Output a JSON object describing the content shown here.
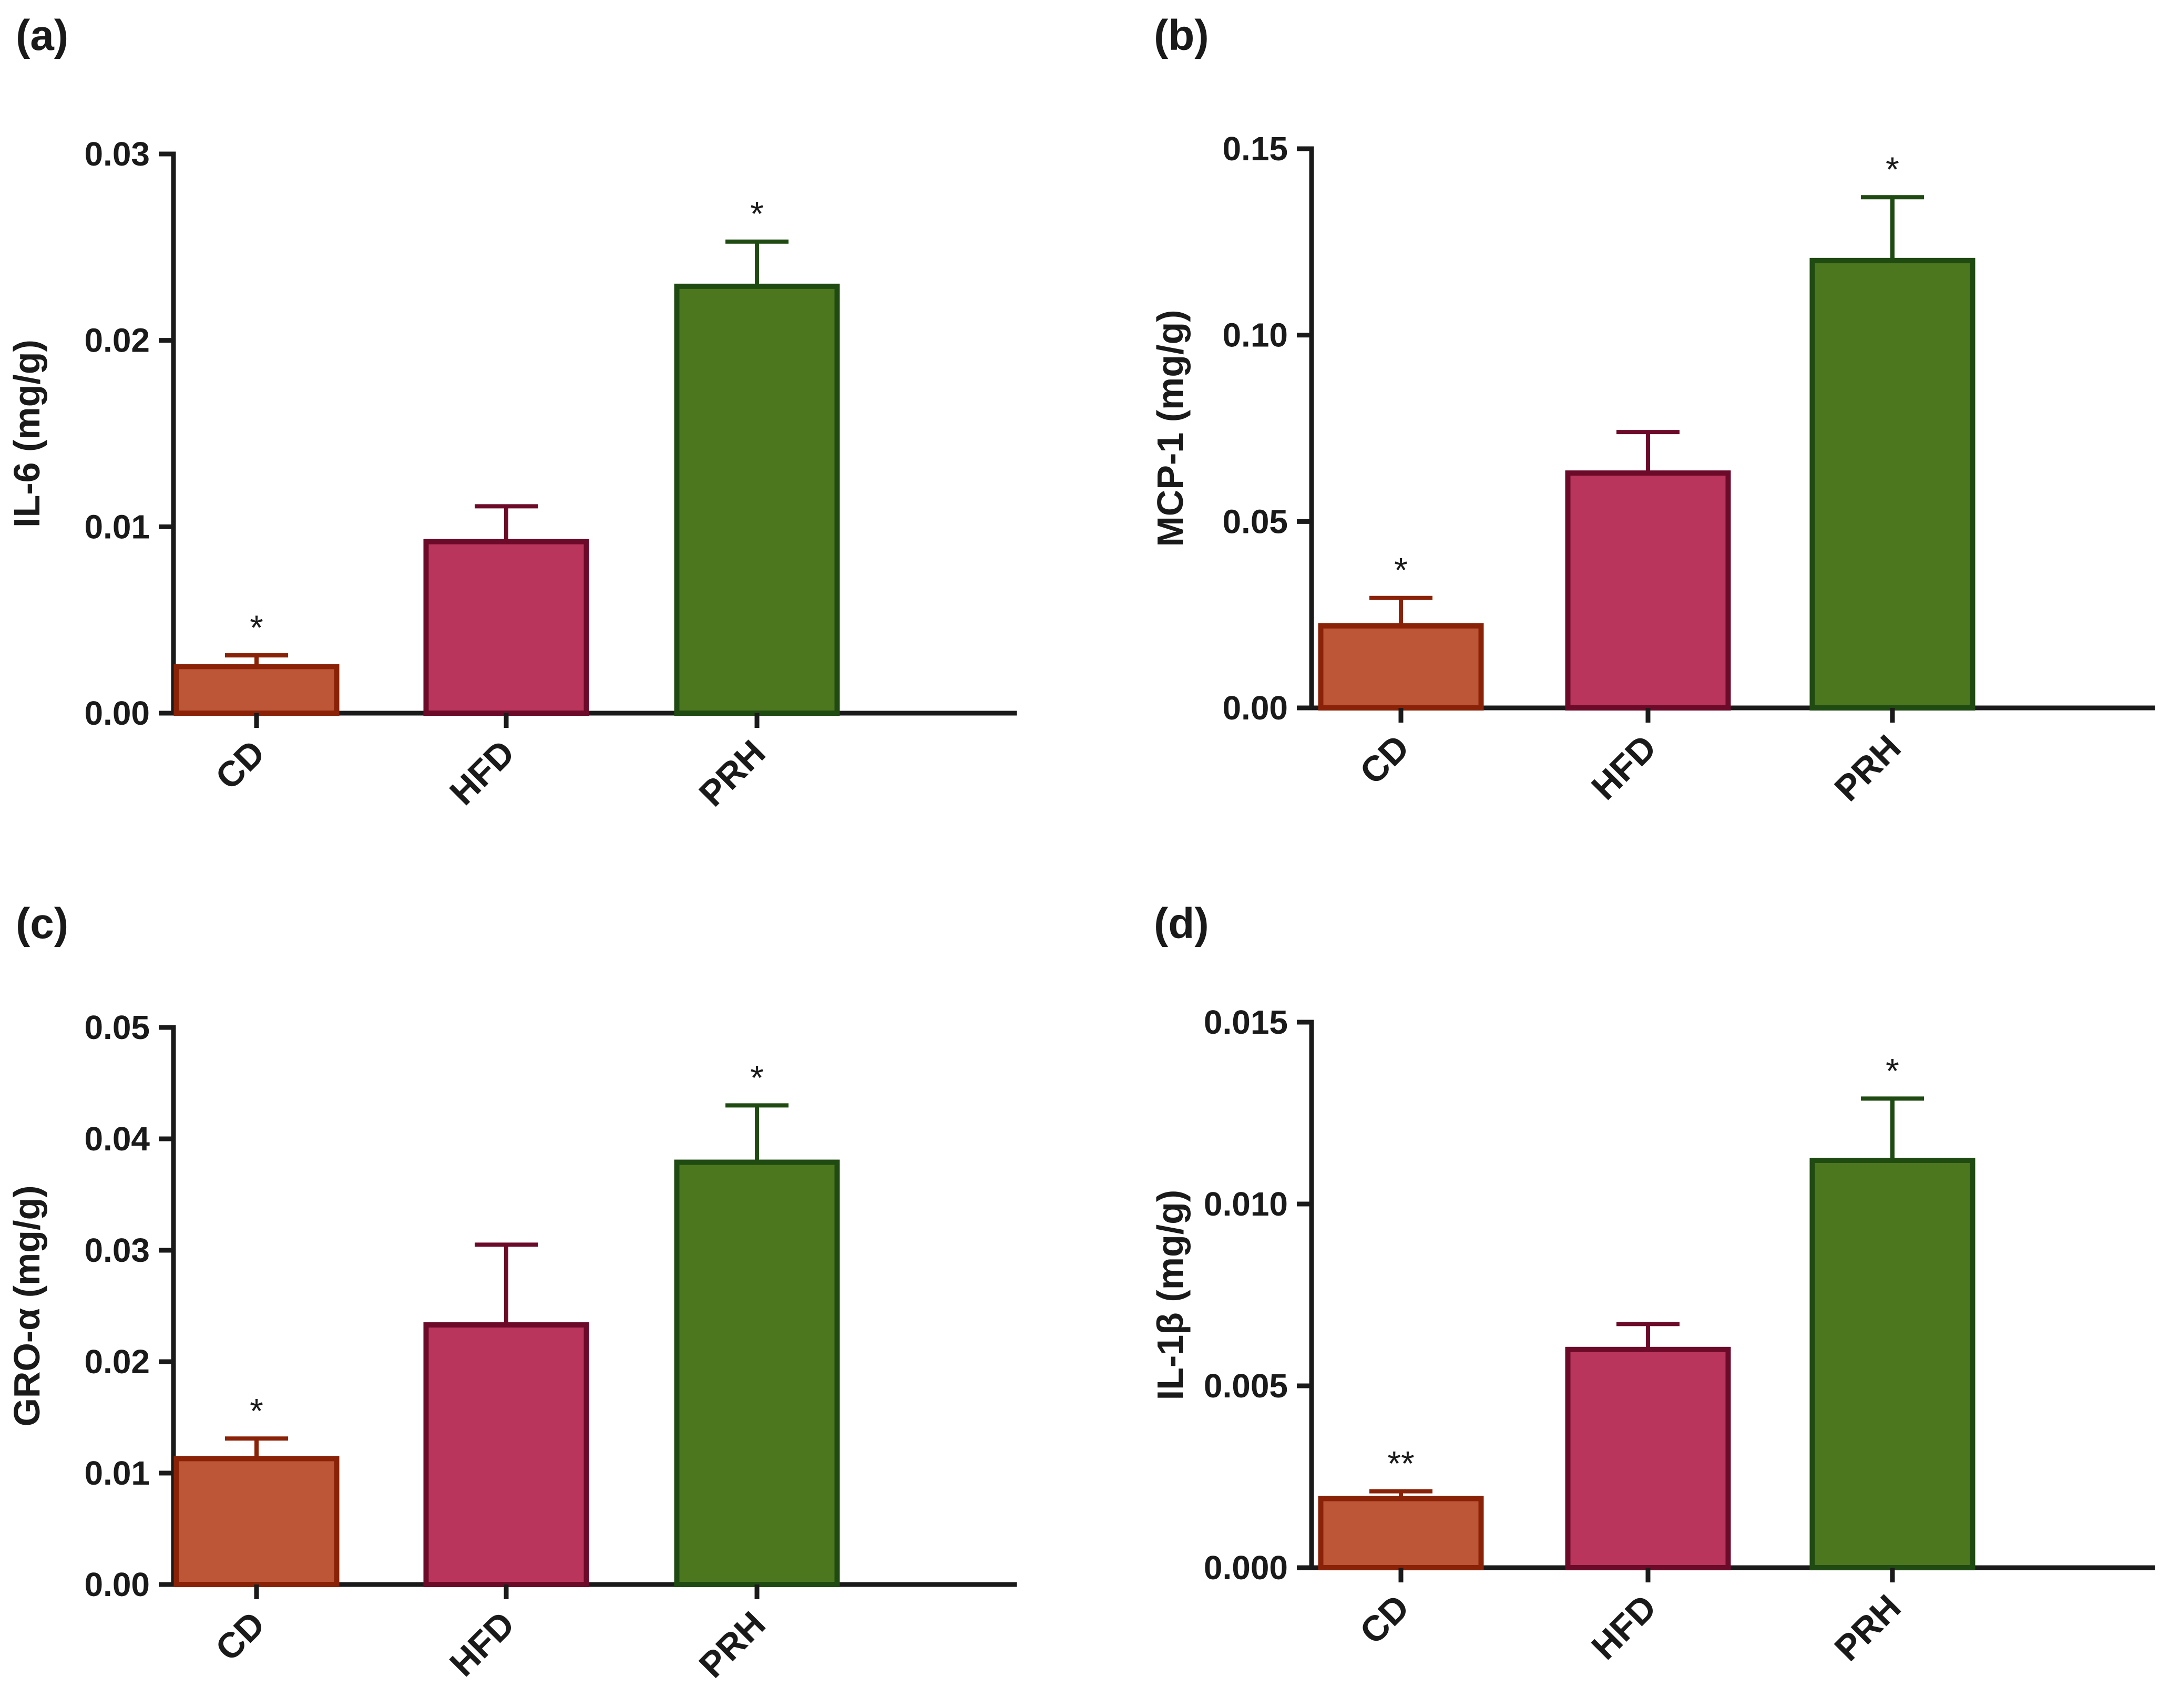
{
  "chart_data": [
    {
      "panel": "(a)",
      "type": "bar",
      "categories": [
        "CD",
        "HFD",
        "PRH"
      ],
      "values": [
        0.0025,
        0.0092,
        0.0229
      ],
      "errors": [
        0.0006,
        0.0019,
        0.0024
      ],
      "significance": [
        "*",
        "",
        "*"
      ],
      "ylabel": "IL-6 (mg/g)",
      "xlabel": "",
      "ylim": [
        0,
        0.03
      ],
      "yticks": [
        0.0,
        0.01,
        0.02,
        0.03
      ],
      "ytick_labels": [
        "0.00",
        "0.01",
        "0.02",
        "0.03"
      ]
    },
    {
      "panel": "(b)",
      "type": "bar",
      "categories": [
        "CD",
        "HFD",
        "PRH"
      ],
      "values": [
        0.022,
        0.063,
        0.12
      ],
      "errors": [
        0.0075,
        0.011,
        0.017
      ],
      "significance": [
        "*",
        "",
        "*"
      ],
      "ylabel": "MCP-1 (mg/g)",
      "xlabel": "",
      "ylim": [
        0,
        0.15
      ],
      "yticks": [
        0.0,
        0.05,
        0.1,
        0.15
      ],
      "ytick_labels": [
        "0.00",
        "0.05",
        "0.10",
        "0.15"
      ]
    },
    {
      "panel": "(c)",
      "type": "bar",
      "categories": [
        "CD",
        "HFD",
        "PRH"
      ],
      "values": [
        0.0113,
        0.0233,
        0.0379
      ],
      "errors": [
        0.0018,
        0.0072,
        0.0051
      ],
      "significance": [
        "*",
        "",
        "*"
      ],
      "ylabel": "GRO-α (mg/g)",
      "xlabel": "",
      "ylim": [
        0,
        0.05
      ],
      "yticks": [
        0.0,
        0.01,
        0.02,
        0.03,
        0.04,
        0.05
      ],
      "ytick_labels": [
        "0.00",
        "0.01",
        "0.02",
        "0.03",
        "0.04",
        "0.05"
      ]
    },
    {
      "panel": "(d)",
      "type": "bar",
      "categories": [
        "CD",
        "HFD",
        "PRH"
      ],
      "values": [
        0.0019,
        0.006,
        0.0112
      ],
      "errors": [
        0.0002,
        0.0007,
        0.0017
      ],
      "significance": [
        "**",
        "",
        "*"
      ],
      "ylabel": "IL-1β (mg/g)",
      "xlabel": "",
      "ylim": [
        0,
        0.015
      ],
      "yticks": [
        0.0,
        0.005,
        0.01,
        0.015
      ],
      "ytick_labels": [
        "0.000",
        "0.005",
        "0.010",
        "0.015"
      ]
    }
  ],
  "colors": {
    "CD": {
      "fill": "#BD5537",
      "stroke": "#8A2208"
    },
    "HFD": {
      "fill": "#B9355C",
      "stroke": "#6C0A2A"
    },
    "PRH": {
      "fill": "#4D771F",
      "stroke": "#1F4A12"
    },
    "axis": "#1a1a1a"
  }
}
